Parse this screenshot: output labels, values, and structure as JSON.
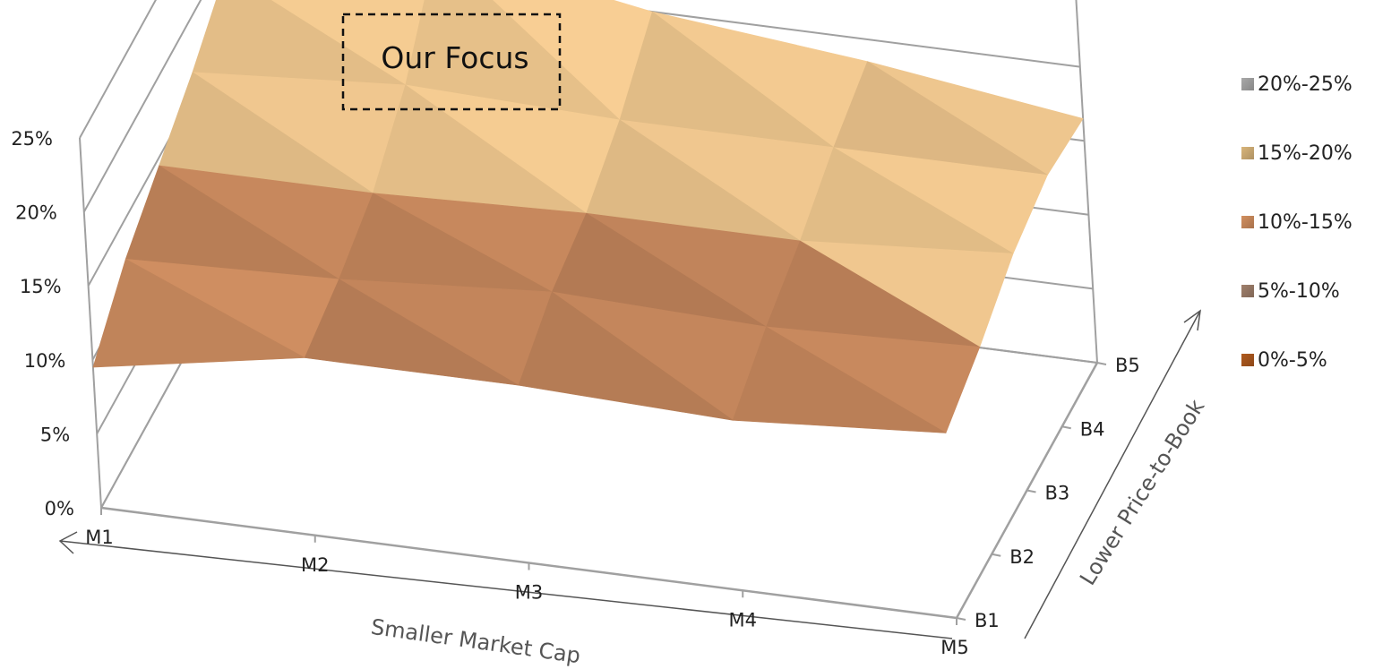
{
  "chart_data": {
    "type": "surface",
    "x_categories": [
      "M1",
      "M2",
      "M3",
      "M4",
      "M5"
    ],
    "y_categories": [
      "B1",
      "B2",
      "B3",
      "B4",
      "B5"
    ],
    "xlabel": "Smaller Market Cap",
    "ylabel": "Lower Price-to-Book",
    "z_ticks": [
      "0%",
      "5%",
      "10%",
      "15%",
      "20%",
      "25%"
    ],
    "zlim": [
      0,
      25
    ],
    "z_unit": "%",
    "values_by_book_row": [
      {
        "row": "B1",
        "values": [
          9.5,
          12.0,
          12.0,
          11.5,
          12.5
        ]
      },
      {
        "row": "B2",
        "values": [
          12.5,
          13.0,
          14.0,
          13.5,
          14.0
        ]
      },
      {
        "row": "B3",
        "values": [
          14.5,
          14.5,
          15.0,
          15.0,
          16.0
        ]
      },
      {
        "row": "B4",
        "values": [
          16.5,
          17.5,
          17.0,
          17.0,
          17.0
        ]
      },
      {
        "row": "B5",
        "values": [
          19.0,
          22.5,
          20.0,
          18.5,
          16.5
        ]
      }
    ],
    "annotation": "Our Focus",
    "legend_position": "right",
    "legend": [
      {
        "label": "20%-25%",
        "color": "#a9a9a9"
      },
      {
        "label": "15%-20%",
        "color": "#d9b57a"
      },
      {
        "label": "10%-15%",
        "color": "#d28f5f"
      },
      {
        "label": "5%-10%",
        "color": "#a0806c"
      },
      {
        "label": "0%-5%",
        "color": "#b05a1e"
      }
    ],
    "band_colors": [
      "#b05a1e",
      "#9e7d69",
      "#b57c55",
      "#dcb783",
      "#bdbdbd"
    ]
  }
}
